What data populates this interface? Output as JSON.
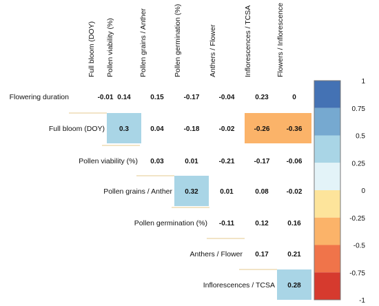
{
  "chart_data": {
    "type": "heatmap",
    "title": "",
    "columns": [
      "Full bloom (DOY)",
      "Pollen viability (%)",
      "Pollen grains / Anther",
      "Pollen germination (%)",
      "Anthers / Flower",
      "Inflorescences / TCSA",
      "Flowers / Inflorescence"
    ],
    "rows": [
      {
        "label": "Flowering duration",
        "values": [
          -0.01,
          0.14,
          0.15,
          -0.17,
          -0.04,
          0.23,
          0
        ]
      },
      {
        "label": "Full bloom (DOY)",
        "values": [
          0.3,
          0.04,
          -0.18,
          -0.02,
          -0.26,
          -0.36
        ]
      },
      {
        "label": "Pollen viability (%)",
        "values": [
          0.03,
          0.01,
          -0.21,
          -0.17,
          -0.06
        ]
      },
      {
        "label": "Pollen grains / Anther",
        "values": [
          0.32,
          0.01,
          0.08,
          -0.02
        ]
      },
      {
        "label": "Pollen germination (%)",
        "values": [
          -0.11,
          0.12,
          0.16
        ]
      },
      {
        "label": "Anthers / Flower",
        "values": [
          0.17,
          0.21
        ]
      },
      {
        "label": "Inflorescences / TCSA",
        "values": [
          0.28
        ]
      }
    ],
    "value_labels": [
      [
        "-0.01",
        "0.14",
        "0.15",
        "-0.17",
        "-0.04",
        "0.23",
        "0"
      ],
      [
        "0.3",
        "0.04",
        "-0.18",
        "-0.02",
        "-0.26",
        "-0.36"
      ],
      [
        "0.03",
        "0.01",
        "-0.21",
        "-0.17",
        "-0.06"
      ],
      [
        "0.32",
        "0.01",
        "0.08",
        "-0.02"
      ],
      [
        "-0.11",
        "0.12",
        "0.16"
      ],
      [
        "0.17",
        "0.21"
      ],
      [
        "0.28"
      ]
    ],
    "highlight_threshold": 0.25,
    "legend": {
      "placement": "right",
      "range": [
        -1,
        1
      ],
      "ticks": [
        "1",
        "0.75",
        "0.5",
        "0.25",
        "0",
        "-0.25",
        "-0.5",
        "-0.75",
        "-1"
      ],
      "colors_top_to_bottom": [
        "#4472b4",
        "#76a9d0",
        "#a9d5e6",
        "#e3f3f8",
        "#fde49b",
        "#fbb369",
        "#f0744a",
        "#d63a2e"
      ]
    },
    "colors": {
      "separator": "#e6c88c"
    }
  }
}
